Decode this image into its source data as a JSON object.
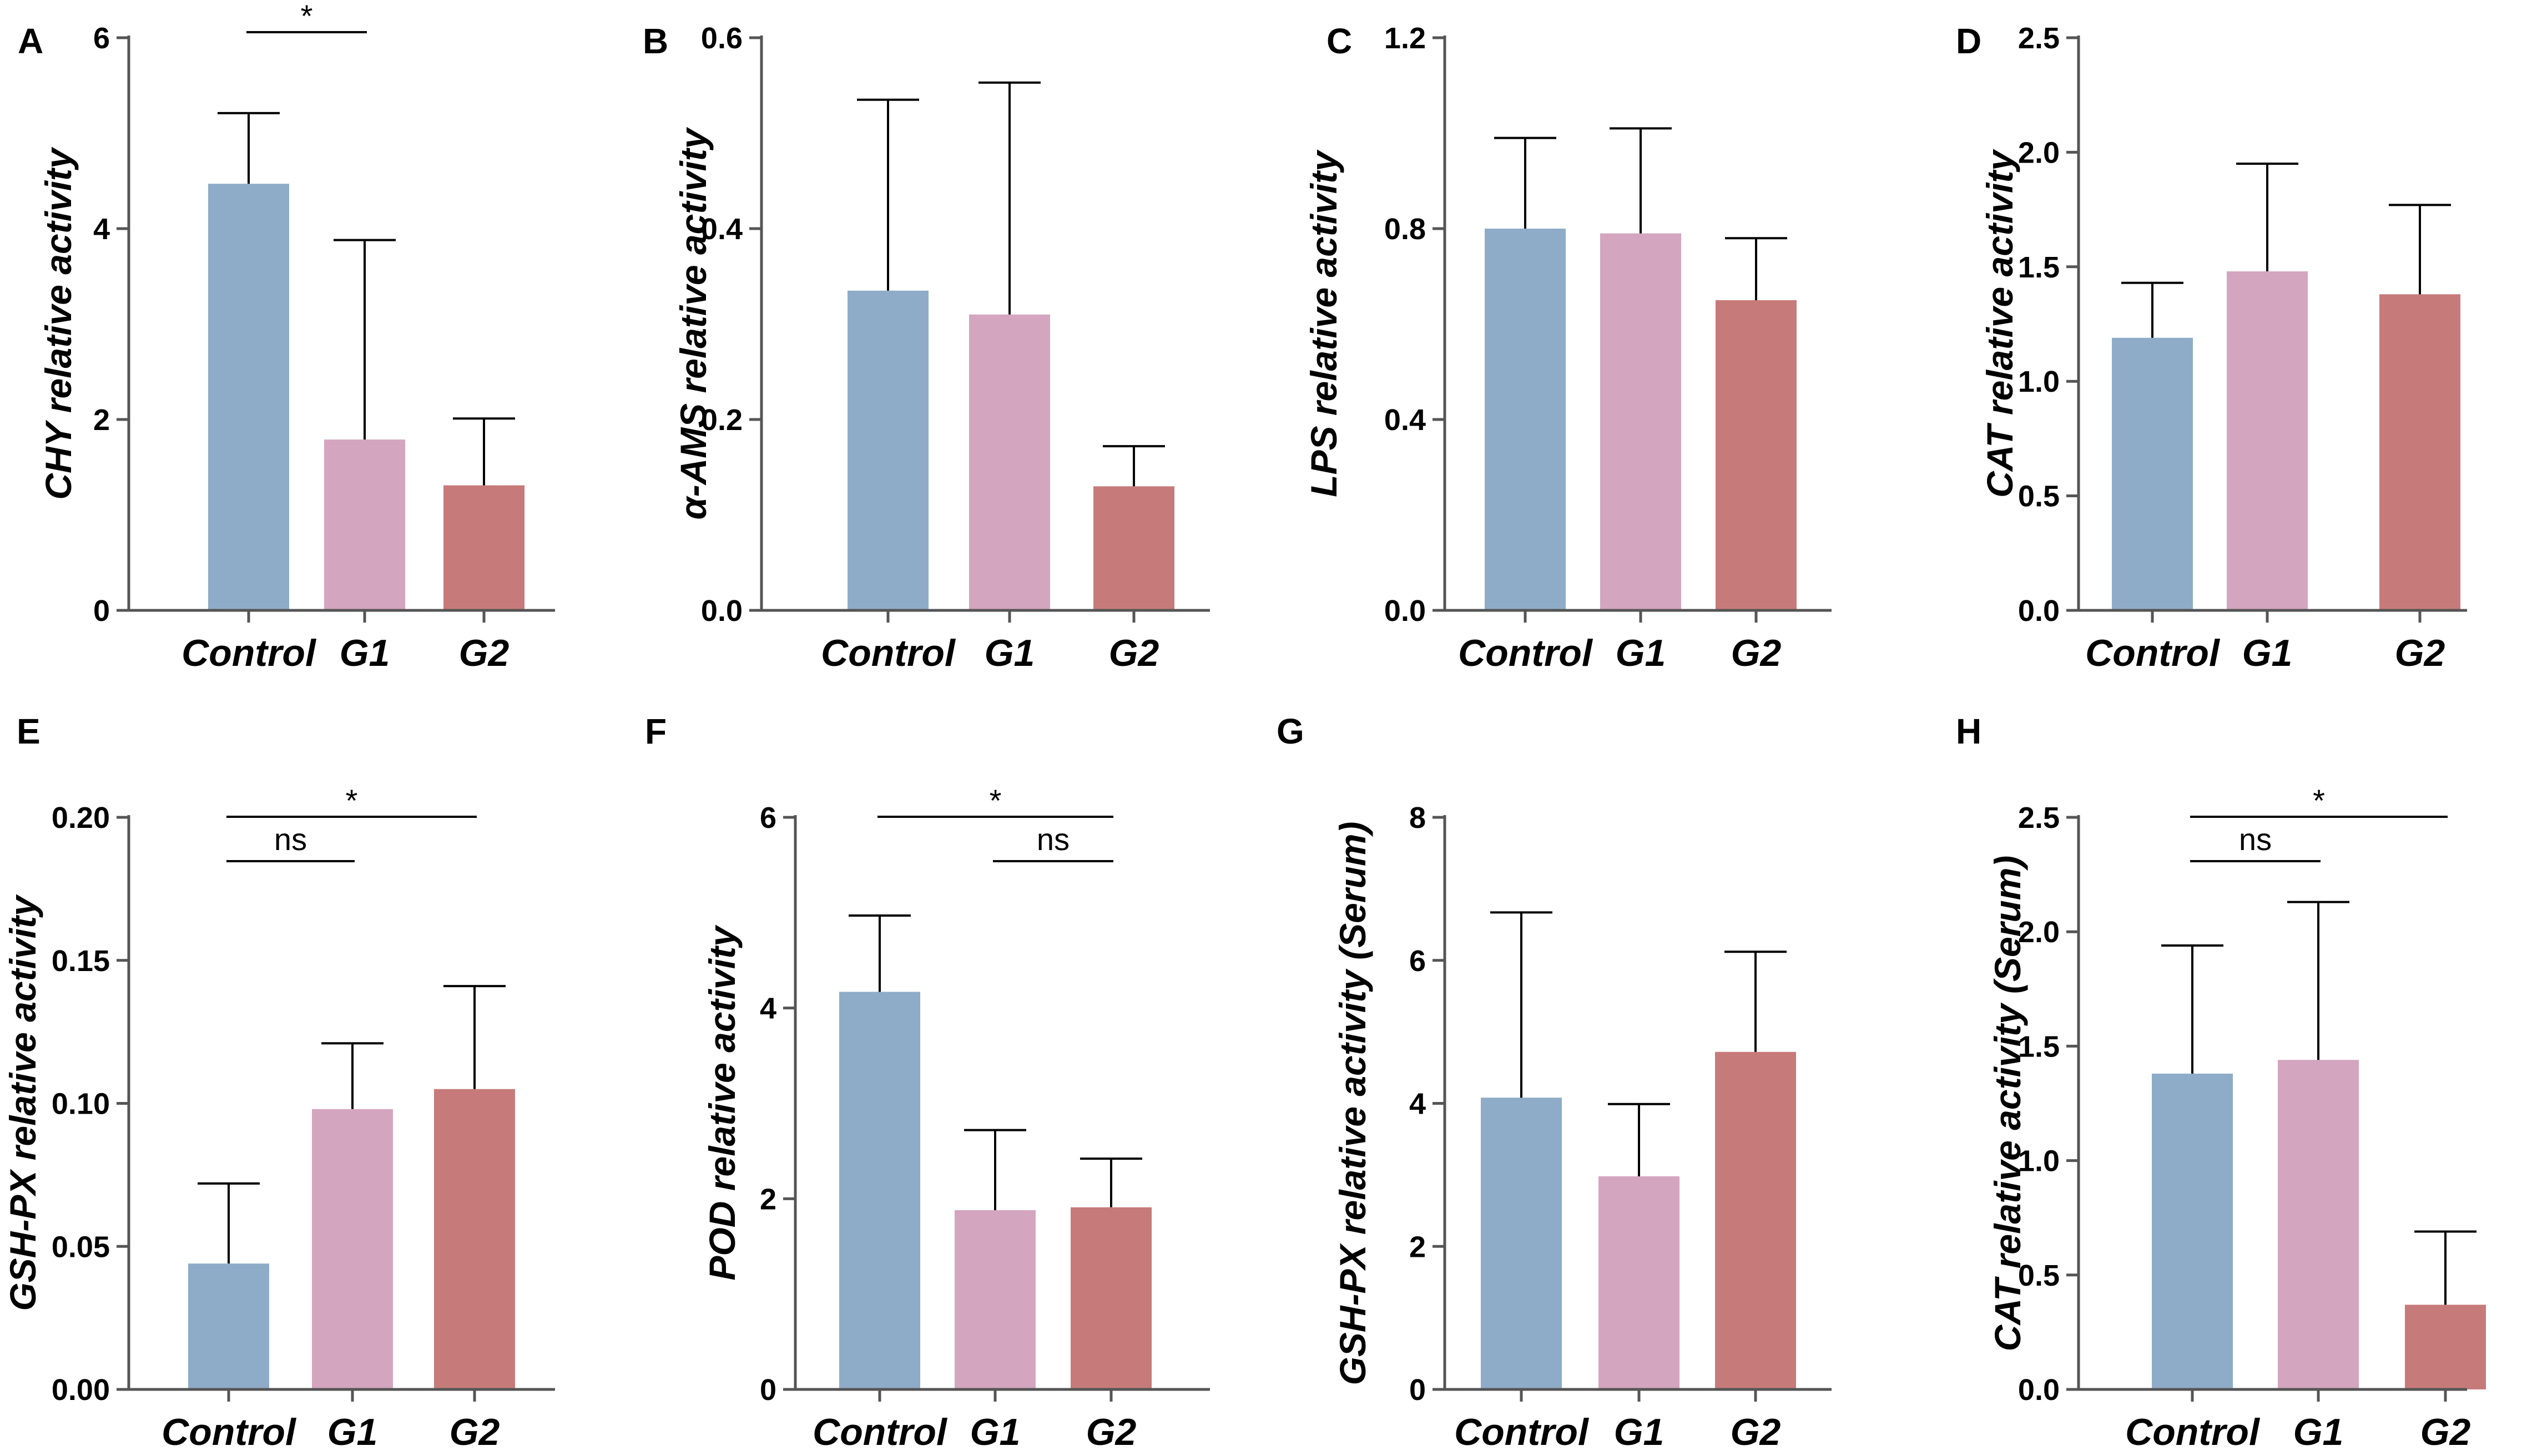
{
  "colors": {
    "Control": "#8eacc8",
    "G1": "#d4a5bf",
    "G2": "#c67b7a"
  },
  "chart_data": [
    {
      "panel": "A",
      "type": "bar",
      "ylabel": "CHY relative activity",
      "categories": [
        "Control",
        "G1",
        "G2"
      ],
      "values": [
        4.47,
        1.79,
        1.31
      ],
      "errors": [
        0.74,
        2.09,
        0.7
      ],
      "ylim": [
        0,
        6
      ],
      "ticks": [
        "0",
        "2",
        "4",
        "6"
      ],
      "tick_values": [
        0,
        2,
        4,
        6
      ],
      "comparisons": [
        {
          "from": 0,
          "to": 1,
          "label": "*"
        }
      ]
    },
    {
      "panel": "B",
      "type": "bar",
      "ylabel": "α-AMS relative activity",
      "categories": [
        "Control",
        "G1",
        "G2"
      ],
      "values": [
        0.335,
        0.31,
        0.13
      ],
      "errors": [
        0.2,
        0.243,
        0.042
      ],
      "ylim": [
        0,
        0.6
      ],
      "ticks": [
        "0.0",
        "0.2",
        "0.4",
        "0.6"
      ],
      "tick_values": [
        0,
        0.2,
        0.4,
        0.6
      ],
      "comparisons": []
    },
    {
      "panel": "C",
      "type": "bar",
      "ylabel": "LPS relative activity",
      "categories": [
        "Control",
        "G1",
        "G2"
      ],
      "values": [
        0.8,
        0.79,
        0.65
      ],
      "errors": [
        0.19,
        0.22,
        0.13
      ],
      "ylim": [
        0,
        1.2
      ],
      "ticks": [
        "0.0",
        "0.4",
        "0.8",
        "1.2"
      ],
      "tick_values": [
        0,
        0.4,
        0.8,
        1.2
      ],
      "comparisons": []
    },
    {
      "panel": "D",
      "type": "bar",
      "ylabel": "CAT relative activity",
      "categories": [
        "Control",
        "G1",
        "G2"
      ],
      "values": [
        1.19,
        1.48,
        1.38
      ],
      "errors": [
        0.24,
        0.47,
        0.39
      ],
      "ylim": [
        0,
        2.5
      ],
      "ticks": [
        "0.0",
        "0.5",
        "1.0",
        "1.5",
        "2.0",
        "2.5"
      ],
      "tick_values": [
        0,
        0.5,
        1.0,
        1.5,
        2.0,
        2.5
      ],
      "comparisons": []
    },
    {
      "panel": "E",
      "type": "bar",
      "ylabel": "GSH-PX relative activity",
      "categories": [
        "Control",
        "G1",
        "G2"
      ],
      "values": [
        0.044,
        0.098,
        0.105
      ],
      "errors": [
        0.028,
        0.023,
        0.036
      ],
      "ylim": [
        0,
        0.2
      ],
      "ticks": [
        "0.00",
        "0.05",
        "0.10",
        "0.15",
        "0.20"
      ],
      "tick_values": [
        0,
        0.05,
        0.1,
        0.15,
        0.2
      ],
      "comparisons": [
        {
          "from": 0,
          "to": 2,
          "label": "*"
        },
        {
          "from": 0,
          "to": 1,
          "label": "ns"
        }
      ]
    },
    {
      "panel": "F",
      "type": "bar",
      "ylabel": "POD relative activity",
      "categories": [
        "Control",
        "G1",
        "G2"
      ],
      "values": [
        4.17,
        1.88,
        1.91
      ],
      "errors": [
        0.8,
        0.84,
        0.51
      ],
      "ylim": [
        0,
        6
      ],
      "ticks": [
        "0",
        "2",
        "4",
        "6"
      ],
      "tick_values": [
        0,
        2,
        4,
        6
      ],
      "comparisons": [
        {
          "from": 0,
          "to": 2,
          "label": "*"
        },
        {
          "from": 1,
          "to": 2,
          "label": "ns"
        }
      ]
    },
    {
      "panel": "G",
      "type": "bar",
      "ylabel": "GSH-PX relative activity (Serum)",
      "categories": [
        "Control",
        "G1",
        "G2"
      ],
      "values": [
        4.08,
        2.98,
        4.72
      ],
      "errors": [
        2.59,
        1.01,
        1.4
      ],
      "ylim": [
        0,
        8
      ],
      "ticks": [
        "0",
        "2",
        "4",
        "6",
        "8"
      ],
      "tick_values": [
        0,
        2,
        4,
        6,
        8
      ],
      "comparisons": []
    },
    {
      "panel": "H",
      "type": "bar",
      "ylabel": "CAT relative activity (Serum)",
      "categories": [
        "Control",
        "G1",
        "G2"
      ],
      "values": [
        1.38,
        1.44,
        0.37
      ],
      "errors": [
        0.56,
        0.69,
        0.32
      ],
      "ylim": [
        0,
        2.5
      ],
      "ticks": [
        "0.0",
        "0.5",
        "1.0",
        "1.5",
        "2.0",
        "2.5"
      ],
      "tick_values": [
        0,
        0.5,
        1.0,
        1.5,
        2.0,
        2.5
      ],
      "comparisons": [
        {
          "from": 0,
          "to": 2,
          "label": "*"
        },
        {
          "from": 0,
          "to": 1,
          "label": "ns"
        }
      ]
    }
  ]
}
